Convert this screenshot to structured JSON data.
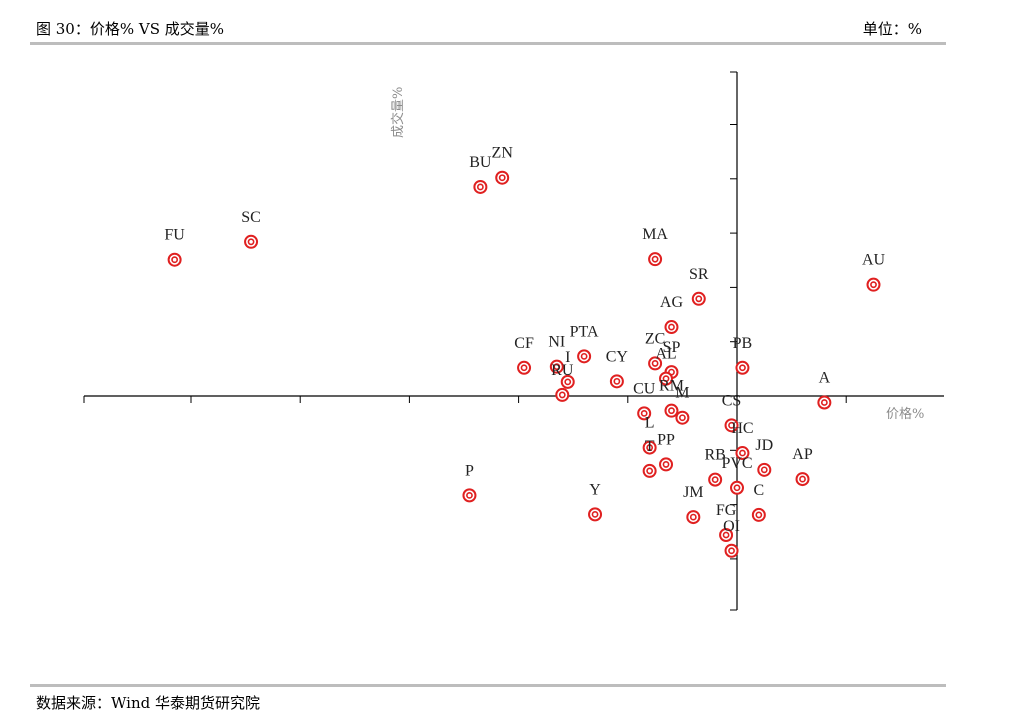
{
  "header": {
    "title": "图 30：价格% VS  成交量%",
    "unit": "单位：%"
  },
  "footer": {
    "source": "数据来源：Wind  华泰期货研究院"
  },
  "chart_data": {
    "type": "scatter",
    "xlabel": "价格%",
    "ylabel": "成交量%",
    "marker_color": "#e02020",
    "x_ticks_every": 2,
    "y_ticks_every": 10,
    "grid": false,
    "points": [
      {
        "label": "FU",
        "x": -10.3,
        "y": 25.1
      },
      {
        "label": "SC",
        "x": -8.9,
        "y": 28.4
      },
      {
        "label": "BU",
        "x": -4.7,
        "y": 38.5
      },
      {
        "label": "ZN",
        "x": -4.3,
        "y": 40.2
      },
      {
        "label": "MA",
        "x": -1.5,
        "y": 25.2
      },
      {
        "label": "SR",
        "x": -0.7,
        "y": 17.9
      },
      {
        "label": "AG",
        "x": -1.2,
        "y": 12.7
      },
      {
        "label": "AU",
        "x": 2.5,
        "y": 20.5
      },
      {
        "label": "CF",
        "x": -3.9,
        "y": 5.2
      },
      {
        "label": "NI",
        "x": -3.3,
        "y": 5.4
      },
      {
        "label": "PTA",
        "x": -2.8,
        "y": 7.3
      },
      {
        "label": "I",
        "x": -3.1,
        "y": 2.6
      },
      {
        "label": "RU",
        "x": -3.2,
        "y": 0.2
      },
      {
        "label": "CY",
        "x": -2.2,
        "y": 2.7
      },
      {
        "label": "ZC",
        "x": -1.5,
        "y": 6.0
      },
      {
        "label": "SP",
        "x": -1.2,
        "y": 4.4
      },
      {
        "label": "AL",
        "x": -1.3,
        "y": 3.2
      },
      {
        "label": "PB",
        "x": 0.1,
        "y": 5.2
      },
      {
        "label": "A",
        "x": 1.6,
        "y": -1.2
      },
      {
        "label": "CU",
        "x": -1.7,
        "y": -3.2
      },
      {
        "label": "RM",
        "x": -1.2,
        "y": -2.7
      },
      {
        "label": "M",
        "x": -1.0,
        "y": -4.0
      },
      {
        "label": "L",
        "x": -1.6,
        "y": -9.5
      },
      {
        "label": "PP",
        "x": -1.3,
        "y": -12.6
      },
      {
        "label": "T",
        "x": -1.6,
        "y": -13.8
      },
      {
        "label": "CS",
        "x": -0.1,
        "y": -5.4
      },
      {
        "label": "HC",
        "x": 0.1,
        "y": -10.5
      },
      {
        "label": "JD",
        "x": 0.5,
        "y": -13.6
      },
      {
        "label": "AP",
        "x": 1.2,
        "y": -15.3
      },
      {
        "label": "RB",
        "x": -0.4,
        "y": -15.4
      },
      {
        "label": "PVC",
        "x": 0.0,
        "y": -16.9
      },
      {
        "label": "C",
        "x": 0.4,
        "y": -21.9
      },
      {
        "label": "JM",
        "x": -0.8,
        "y": -22.3
      },
      {
        "label": "FG",
        "x": -0.2,
        "y": -25.6
      },
      {
        "label": "OI",
        "x": -0.1,
        "y": -28.5
      },
      {
        "label": "P",
        "x": -4.9,
        "y": -18.3
      },
      {
        "label": "Y",
        "x": -2.6,
        "y": -21.8
      }
    ]
  }
}
